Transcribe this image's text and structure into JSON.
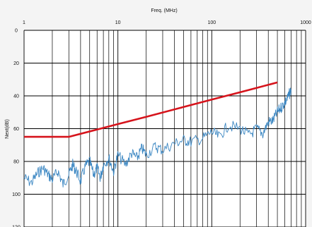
{
  "chart_data": {
    "type": "line",
    "xlabel": "Freq. (MHz)",
    "ylabel": "Next(dB)",
    "xscale": "log",
    "xlim": [
      1,
      1000
    ],
    "ylim": [
      0,
      120
    ],
    "y_inverted": true,
    "grid": true,
    "x_tick_labels": [
      "1",
      "10",
      "100",
      "1000"
    ],
    "y_tick_labels": [
      "0",
      "20",
      "40",
      "60",
      "80",
      "100",
      "120"
    ],
    "series": [
      {
        "color": "#d6141c",
        "x": [
          1,
          3,
          6,
          10,
          20,
          50,
          100,
          200,
          500
        ],
        "y": [
          65,
          65,
          60.5,
          57.2,
          52.8,
          46.8,
          42.3,
          37.8,
          31.8
        ]
      },
      {
        "color": "#3a86c2",
        "x": [
          1,
          1.2,
          1.4,
          1.6,
          1.8,
          2,
          2.3,
          2.6,
          3,
          3.3,
          3.6,
          4,
          4.5,
          5,
          5.5,
          6,
          6.5,
          7,
          8,
          9,
          10,
          12,
          14,
          16,
          18,
          20,
          25,
          30,
          40,
          50,
          60,
          80,
          100,
          120,
          150,
          200,
          250,
          300,
          350,
          400,
          450,
          500,
          550,
          600,
          650,
          700
        ],
        "y": [
          90,
          93,
          87,
          84,
          88,
          91,
          86,
          94,
          88,
          82,
          86,
          92,
          83,
          80,
          88,
          84,
          90,
          82,
          78,
          86,
          76,
          82,
          75,
          78,
          72,
          76,
          71,
          73,
          69,
          67,
          68,
          66,
          62,
          65,
          58,
          60,
          64,
          60,
          63,
          56,
          55,
          50,
          47,
          44,
          41,
          36
        ]
      }
    ]
  }
}
